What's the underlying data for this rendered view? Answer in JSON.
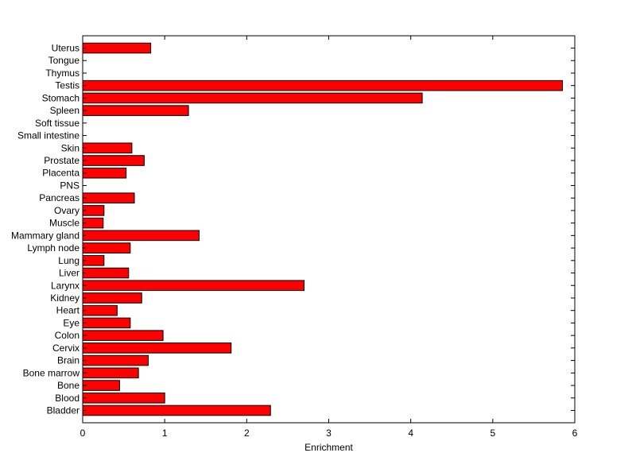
{
  "chart_data": {
    "type": "bar",
    "orientation": "horizontal",
    "title": "",
    "xlabel": "Enrichment",
    "ylabel": "",
    "xlim": [
      0,
      6
    ],
    "xticks": [
      0,
      1,
      2,
      3,
      4,
      5,
      6
    ],
    "grid": false,
    "bar_color": "#ff0000",
    "bar_edge_color": "#000000",
    "categories": [
      "Bladder",
      "Blood",
      "Bone",
      "Bone marrow",
      "Brain",
      "Cervix",
      "Colon",
      "Eye",
      "Heart",
      "Kidney",
      "Larynx",
      "Liver",
      "Lung",
      "Lymph node",
      "Mammary gland",
      "Muscle",
      "Ovary",
      "Pancreas",
      "PNS",
      "Placenta",
      "Prostate",
      "Skin",
      "Small intestine",
      "Soft tissue",
      "Spleen",
      "Stomach",
      "Testis",
      "Thymus",
      "Tongue",
      "Uterus"
    ],
    "values": [
      2.29,
      1.0,
      0.45,
      0.68,
      0.8,
      1.81,
      0.98,
      0.58,
      0.42,
      0.72,
      2.7,
      0.56,
      0.26,
      0.58,
      1.42,
      0.25,
      0.26,
      0.63,
      0,
      0.53,
      0.75,
      0.6,
      0,
      0,
      1.29,
      4.14,
      5.85,
      0,
      0,
      0.83
    ]
  }
}
